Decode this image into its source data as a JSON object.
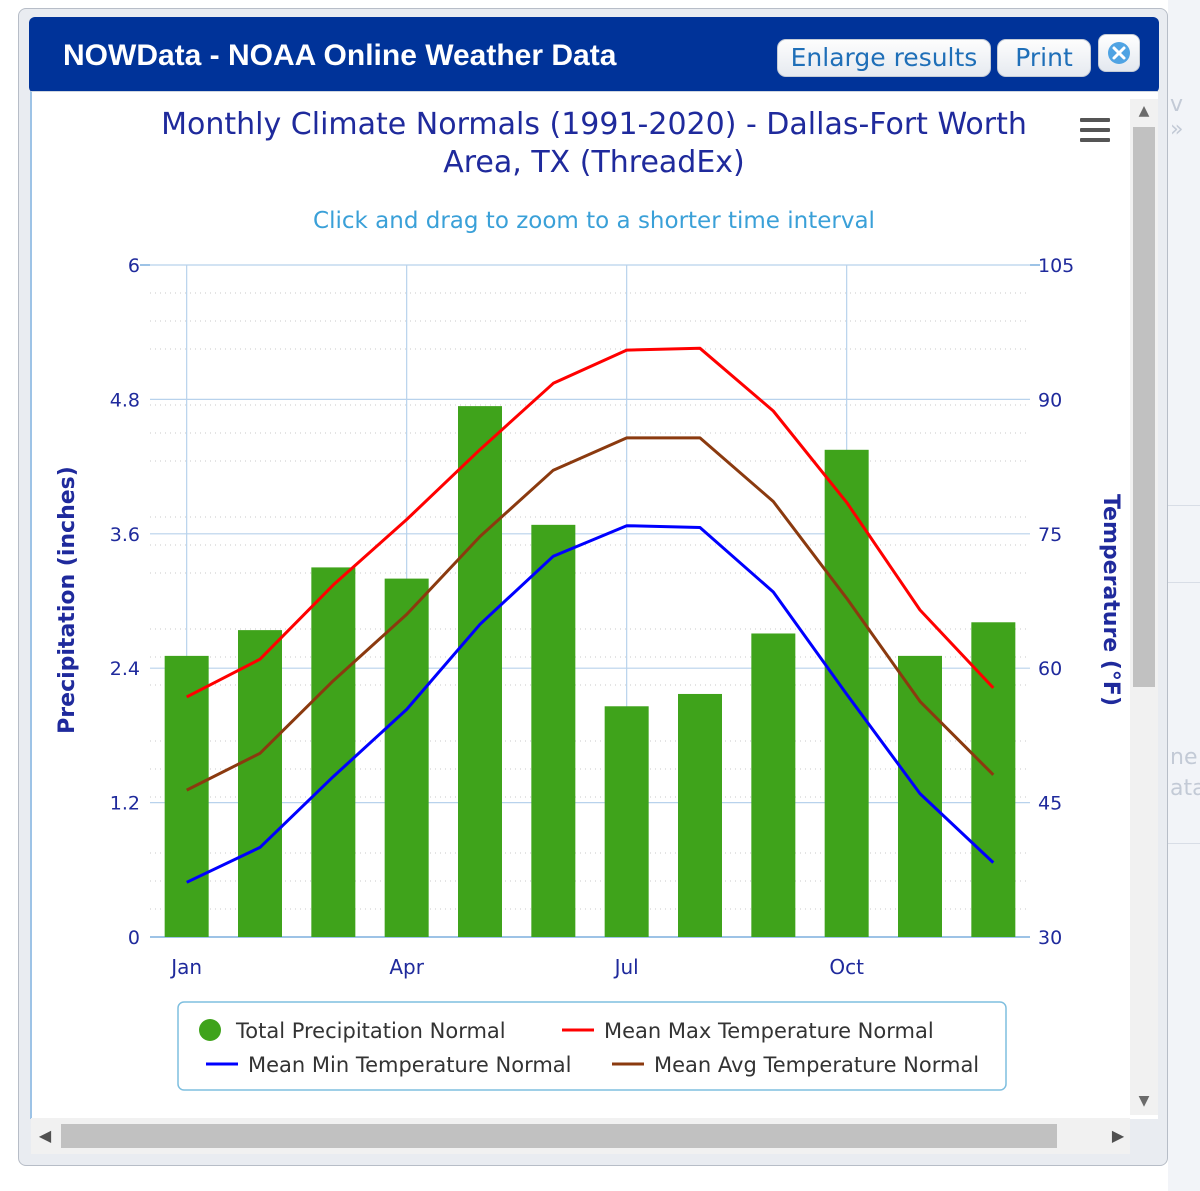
{
  "window": {
    "title": "NOWData - NOAA Online Weather Data",
    "enlarge_label": "Enlarge results",
    "print_label": "Print"
  },
  "colors": {
    "header": "#003399",
    "bars": "#3fa31b",
    "max_line": "#ff0000",
    "min_line": "#0000ff",
    "avg_line": "#8b3a0f",
    "axis_text": "#1f2a9c",
    "subtitle": "#3aa0d8"
  },
  "chart_data": {
    "type": "bar+line",
    "title": "Monthly Climate Normals (1991-2020) - Dallas-Fort Worth Area, TX (ThreadEx)",
    "title_lines": [
      "Monthly Climate Normals (1991-2020) - Dallas-Fort Worth",
      "Area, TX (ThreadEx)"
    ],
    "subtitle": "Click and drag to zoom to a shorter time interval",
    "x_tick_labels": [
      "Jan",
      "Apr",
      "Jul",
      "Oct"
    ],
    "x_tick_indices": [
      0,
      3,
      6,
      9
    ],
    "y_left": {
      "label": "Precipitation (inches)",
      "range": [
        0,
        6
      ],
      "ticks": [
        "0",
        "1.2",
        "2.4",
        "3.6",
        "4.8",
        "6"
      ]
    },
    "y_right": {
      "label": "Temperature (°F)",
      "range": [
        30,
        105
      ],
      "ticks": [
        "30",
        "45",
        "60",
        "75",
        "90",
        "105"
      ]
    },
    "grid": true,
    "legend_position": "bottom",
    "series": [
      {
        "name": "Total Precipitation Normal",
        "kind": "bar",
        "axis": "left",
        "values": [
          2.51,
          2.74,
          3.3,
          3.2,
          4.74,
          3.68,
          2.06,
          2.17,
          2.71,
          4.35,
          2.51,
          2.81
        ]
      },
      {
        "name": "Mean Max Temperature Normal",
        "kind": "line",
        "axis": "right",
        "values": [
          56.8,
          61.0,
          69.3,
          76.6,
          84.4,
          91.8,
          95.5,
          95.7,
          88.7,
          78.5,
          66.5,
          57.8
        ]
      },
      {
        "name": "Mean Min Temperature Normal",
        "kind": "line",
        "axis": "right",
        "values": [
          36.1,
          40.0,
          47.9,
          55.4,
          64.9,
          72.5,
          75.9,
          75.7,
          68.5,
          57.1,
          46.0,
          38.3
        ]
      },
      {
        "name": "Mean Avg Temperature Normal",
        "kind": "line",
        "axis": "right",
        "values": [
          46.4,
          50.5,
          58.6,
          66.0,
          74.7,
          82.1,
          85.7,
          85.7,
          78.6,
          67.8,
          56.3,
          48.1
        ]
      }
    ]
  }
}
